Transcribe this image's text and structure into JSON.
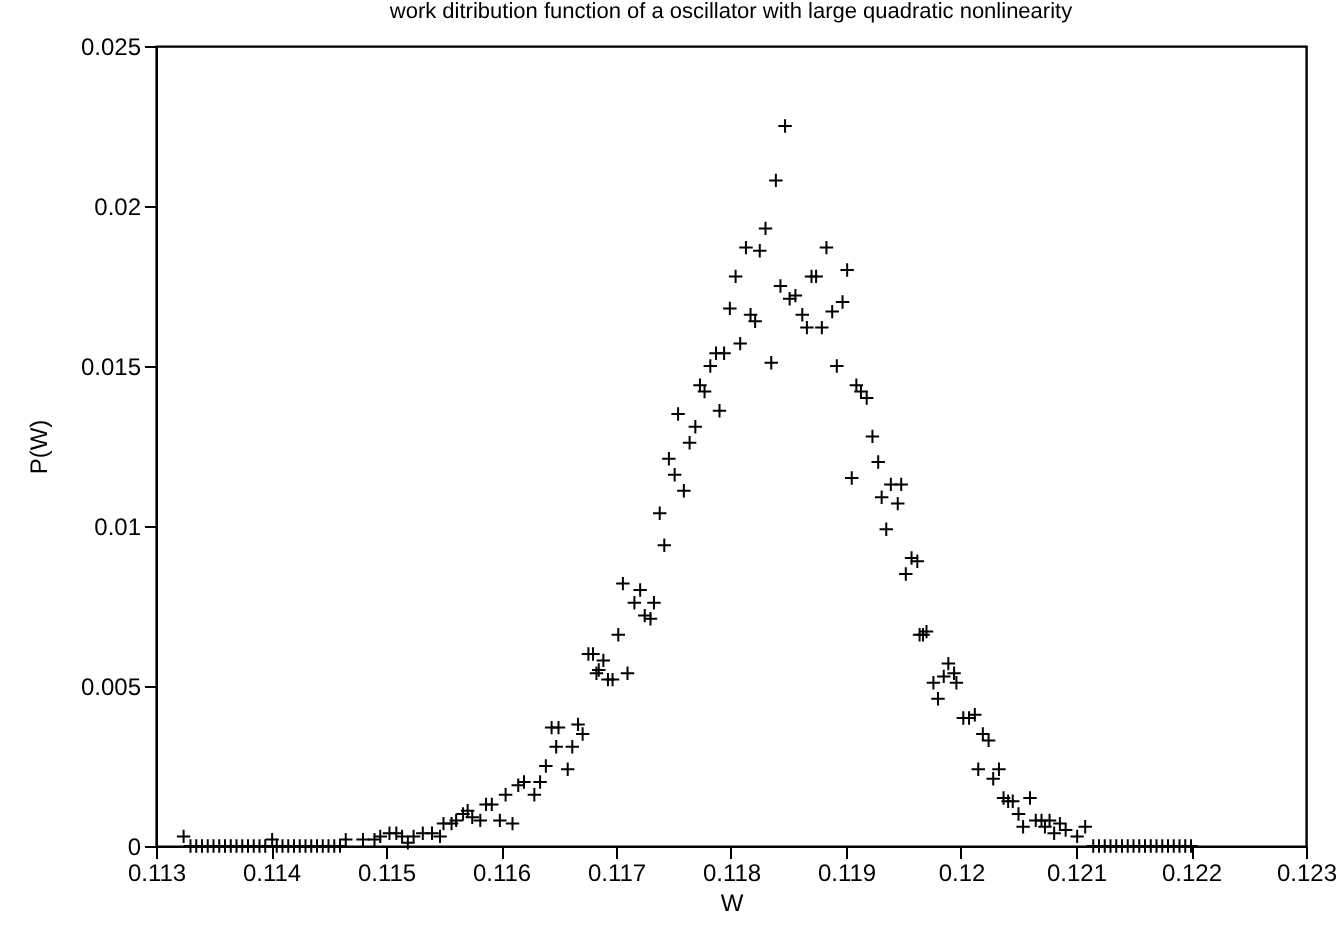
{
  "chart_data": {
    "type": "scatter",
    "title": "work ditribution function of a oscillator with large quadratic nonlinearity",
    "xlabel": "W",
    "ylabel": "P(W)",
    "xlim": [
      0.113,
      0.123
    ],
    "xticks": [
      0.113,
      0.114,
      0.115,
      0.116,
      0.117,
      0.118,
      0.119,
      0.12,
      0.121,
      0.122,
      0.123
    ],
    "ylim": [
      0,
      0.025
    ],
    "yticks": [
      0,
      0.005,
      0.01,
      0.015,
      0.02,
      0.025
    ],
    "grid": false,
    "marker": "cross",
    "series": [
      {
        "color": "#000000",
        "x": [
          0.11324,
          0.1133,
          0.11335,
          0.1134,
          0.11345,
          0.1135,
          0.11355,
          0.1136,
          0.11365,
          0.1137,
          0.11375,
          0.1138,
          0.11385,
          0.1139,
          0.11395,
          0.11401,
          0.11405,
          0.1141,
          0.11415,
          0.1142,
          0.11425,
          0.1143,
          0.11435,
          0.1144,
          0.11445,
          0.1145,
          0.11455,
          0.1146,
          0.11465,
          0.1148,
          0.1149,
          0.11495,
          0.11503,
          0.11509,
          0.11514,
          0.11519,
          0.11524,
          0.11532,
          0.1154,
          0.11547,
          0.1155,
          0.11557,
          0.11561,
          0.11567,
          0.11571,
          0.11575,
          0.11582,
          0.11587,
          0.11592,
          0.11599,
          0.11604,
          0.1161,
          0.11615,
          0.1162,
          0.11629,
          0.11634,
          0.11639,
          0.11644,
          0.11648,
          0.1165,
          0.11658,
          0.11662,
          0.11667,
          0.11671,
          0.11676,
          0.1168,
          0.11683,
          0.11685,
          0.11689,
          0.11693,
          0.11697,
          0.11702,
          0.11706,
          0.1171,
          0.11716,
          0.11721,
          0.11725,
          0.1173,
          0.11733,
          0.11738,
          0.11742,
          0.11746,
          0.11751,
          0.11754,
          0.11759,
          0.11764,
          0.11769,
          0.11773,
          0.11777,
          0.11782,
          0.11787,
          0.1179,
          0.11794,
          0.11799,
          0.11804,
          0.11808,
          0.11813,
          0.11817,
          0.11821,
          0.11825,
          0.1183,
          0.11835,
          0.11839,
          0.11843,
          0.11847,
          0.11851,
          0.11856,
          0.11862,
          0.11866,
          0.1187,
          0.11874,
          0.11879,
          0.11883,
          0.11888,
          0.11892,
          0.11897,
          0.11901,
          0.11905,
          0.11909,
          0.11913,
          0.11918,
          0.11923,
          0.11928,
          0.11931,
          0.11935,
          0.11939,
          0.11945,
          0.11948,
          0.11952,
          0.11957,
          0.11962,
          0.11964,
          0.11967,
          0.1197,
          0.11976,
          0.1198,
          0.11985,
          0.11989,
          0.11994,
          0.11996,
          0.12002,
          0.12007,
          0.12012,
          0.12015,
          0.12019,
          0.12024,
          0.12028,
          0.12033,
          0.12037,
          0.12041,
          0.12045,
          0.1205,
          0.12054,
          0.1206,
          0.12065,
          0.1207,
          0.12073,
          0.12077,
          0.12081,
          0.12086,
          0.12091,
          0.12101,
          0.12108,
          0.12115,
          0.1212,
          0.12125,
          0.1213,
          0.12135,
          0.1214,
          0.12145,
          0.1215,
          0.12155,
          0.1216,
          0.12165,
          0.1217,
          0.12175,
          0.1218,
          0.12185,
          0.1219,
          0.12195,
          0.122
        ],
        "values": [
          0.0003,
          0,
          0,
          0,
          0,
          0,
          0,
          0,
          0,
          0,
          0,
          0,
          0,
          0,
          0,
          0.0002,
          0,
          0,
          0,
          0,
          0,
          0,
          0,
          0,
          0,
          0,
          0,
          0,
          0.0002,
          0.0002,
          0.0002,
          0.0003,
          0.0004,
          0.0004,
          0.0003,
          0.0001,
          0.0003,
          0.0004,
          0.0004,
          0.0003,
          0.0007,
          0.0007,
          0.0008,
          0.001,
          0.0011,
          0.0009,
          0.0008,
          0.0013,
          0.0013,
          0.0008,
          0.0016,
          0.0007,
          0.0019,
          0.002,
          0.0016,
          0.002,
          0.0025,
          0.0037,
          0.0031,
          0.0037,
          0.0024,
          0.0031,
          0.0038,
          0.0035,
          0.006,
          0.006,
          0.0054,
          0.0055,
          0.0058,
          0.0052,
          0.0052,
          0.0066,
          0.0082,
          0.0054,
          0.0076,
          0.008,
          0.0072,
          0.0071,
          0.0076,
          0.0104,
          0.0094,
          0.0121,
          0.0116,
          0.0135,
          0.0111,
          0.0126,
          0.0131,
          0.0144,
          0.0142,
          0.015,
          0.0154,
          0.0136,
          0.0154,
          0.0168,
          0.0178,
          0.0157,
          0.0187,
          0.0166,
          0.0164,
          0.0186,
          0.0193,
          0.0151,
          0.0208,
          0.0175,
          0.0225,
          0.0171,
          0.0172,
          0.0166,
          0.0162,
          0.0178,
          0.0178,
          0.0162,
          0.0187,
          0.0167,
          0.015,
          0.017,
          0.018,
          0.0115,
          0.0144,
          0.0142,
          0.014,
          0.0128,
          0.012,
          0.0109,
          0.0099,
          0.0113,
          0.0107,
          0.0113,
          0.0085,
          0.009,
          0.0089,
          0.0066,
          0.0066,
          0.0067,
          0.0051,
          0.0046,
          0.0053,
          0.0057,
          0.0054,
          0.0051,
          0.004,
          0.004,
          0.0041,
          0.0024,
          0.0035,
          0.0033,
          0.0021,
          0.0024,
          0.0015,
          0.0014,
          0.0014,
          0.001,
          0.0006,
          0.0015,
          0.0008,
          0.0008,
          0.0006,
          0.0008,
          0.0004,
          0.0007,
          0.0005,
          0.0003,
          0.0006,
          0,
          0,
          0,
          0,
          0,
          0,
          0,
          0,
          0,
          0,
          0,
          0,
          0,
          0,
          0,
          0,
          0,
          0
        ]
      }
    ]
  }
}
